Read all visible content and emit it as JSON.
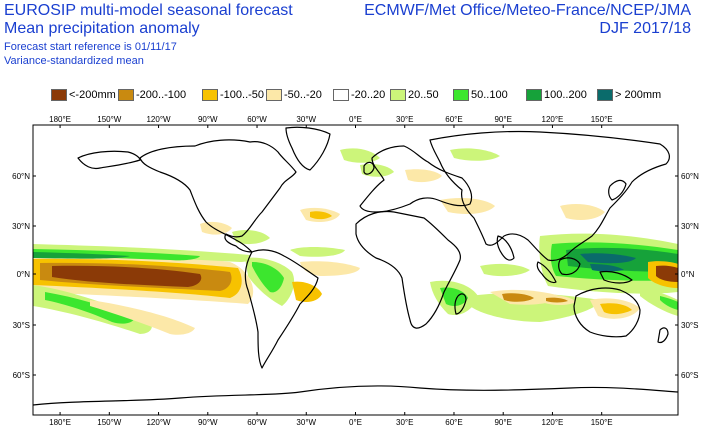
{
  "header": {
    "left_line1": "EUROSIP multi-model seasonal forecast",
    "left_line2": "Mean precipitation anomaly",
    "left_line3": "Forecast start reference is 01/11/17",
    "left_line4": "Variance-standardized mean",
    "right_line1": "ECMWF/Met Office/Meteo-France/NCEP/JMA",
    "right_line2": "DJF 2017/18"
  },
  "legend": [
    {
      "label": "<-200mm",
      "color": "#8b3a07"
    },
    {
      "label": "-200..-100",
      "color": "#c98a10"
    },
    {
      "label": "-100..-50",
      "color": "#f7c200"
    },
    {
      "label": "-50..-20",
      "color": "#fce8a8"
    },
    {
      "label": "-20..20",
      "color": "#ffffff"
    },
    {
      "label": "20..50",
      "color": "#ccf57a"
    },
    {
      "label": "50..100",
      "color": "#3ce62e"
    },
    {
      "label": "100..200",
      "color": "#16a23a"
    },
    {
      "label": "> 200mm",
      "color": "#0a6b6b"
    }
  ],
  "axes": {
    "lon_ticks": [
      "180°E",
      "150°W",
      "120°W",
      "90°W",
      "60°W",
      "30°W",
      "0°E",
      "30°E",
      "60°E",
      "90°E",
      "120°E",
      "150°E"
    ],
    "lat_ticks": [
      "60°N",
      "30°N",
      "0°N",
      "30°S",
      "60°S"
    ]
  }
}
